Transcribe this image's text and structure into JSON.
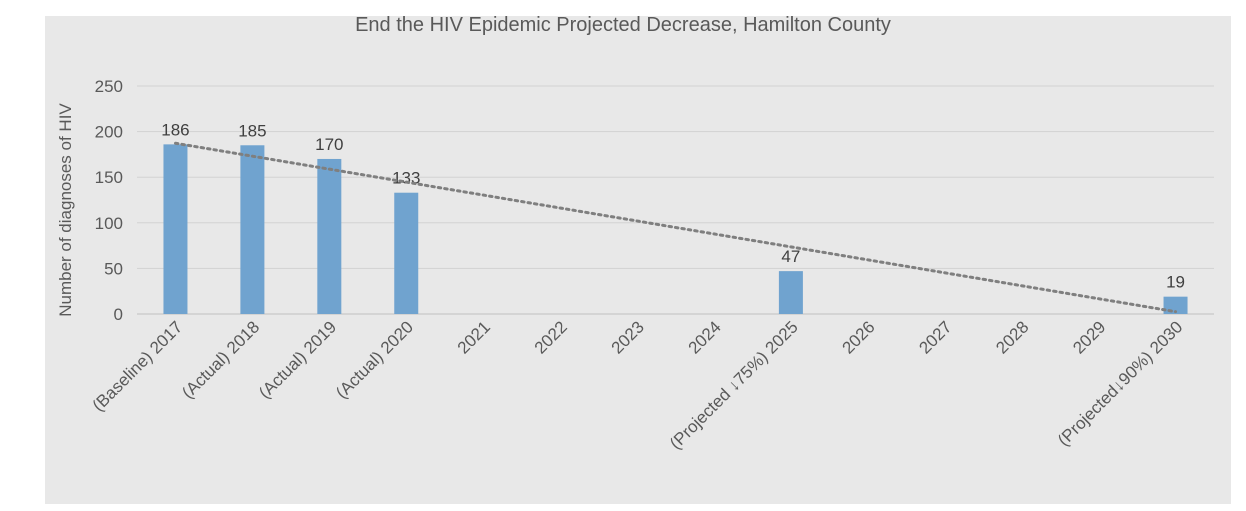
{
  "chart_data": {
    "type": "bar",
    "title": "End the HIV Epidemic Projected Decrease, Hamilton County",
    "xlabel": "",
    "ylabel": "Number of diagnoses of HIV",
    "ylim": [
      0,
      250
    ],
    "yticks": [
      0,
      50,
      100,
      150,
      200,
      250
    ],
    "grid": true,
    "categories": [
      "(Baseline) 2017",
      "(Actual) 2018",
      "(Actual) 2019",
      "(Actual) 2020",
      "2021",
      "2022",
      "2023",
      "2024",
      "(Projected ↓75%) 2025",
      "2026",
      "2027",
      "2028",
      "2029",
      "(Projected↓90%) 2030"
    ],
    "values": [
      186,
      185,
      170,
      133,
      null,
      null,
      null,
      null,
      47,
      null,
      null,
      null,
      null,
      19
    ],
    "data_labels": [
      "186",
      "185",
      "170",
      "133",
      "",
      "",
      "",
      "",
      "47",
      "",
      "",
      "",
      "",
      "19"
    ],
    "trendline": {
      "type": "linear",
      "style": "dotted"
    },
    "colors": {
      "bar": "#70a3cf",
      "trend": "#7f7f7f",
      "gridline": "#d2d2d2",
      "axis_text": "#595959",
      "background": "#e8e8e8"
    }
  }
}
